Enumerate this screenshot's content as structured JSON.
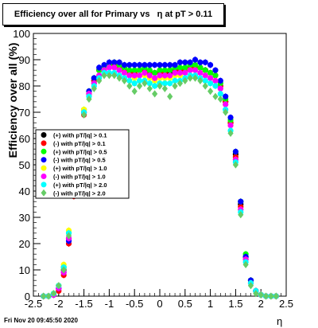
{
  "chart_data": {
    "type": "scatter",
    "title": "Efficiency over all for Primary vs   η at pT > 0.11",
    "xlabel": "η",
    "ylabel": "Efficiency over all (%)",
    "xlim": [
      -2.5,
      2.5
    ],
    "ylim": [
      0,
      100
    ],
    "x_ticks": [
      "-2.5",
      "-2",
      "-1.5",
      "-1",
      "-0.5",
      "0",
      "0.5",
      "1",
      "1.5",
      "2",
      "2.5"
    ],
    "y_ticks": [
      "0",
      "10",
      "20",
      "30",
      "40",
      "50",
      "60",
      "70",
      "80",
      "90",
      "100"
    ],
    "grid": false,
    "legend_position": "left",
    "series": [
      {
        "name": "(+) with pT/|q| > 0.1",
        "color": "#000000",
        "marker": "circle",
        "x": [
          -2.3,
          -2.2,
          -2.1,
          -2.0,
          -1.9,
          -1.8,
          -1.7,
          -1.6,
          -1.5,
          -1.4,
          -1.3,
          -1.2,
          -1.1,
          -1.0,
          -0.9,
          -0.8,
          -0.7,
          -0.6,
          -0.5,
          -0.4,
          -0.3,
          -0.2,
          -0.1,
          0.0,
          0.1,
          0.2,
          0.3,
          0.4,
          0.5,
          0.6,
          0.7,
          0.8,
          0.9,
          1.0,
          1.1,
          1.2,
          1.3,
          1.4,
          1.5,
          1.6,
          1.7,
          1.8,
          1.9,
          2.0,
          2.1,
          2.2,
          2.3
        ],
        "y": [
          0,
          0,
          0.5,
          3,
          10,
          22,
          40,
          58,
          70,
          77,
          82,
          86,
          87,
          88,
          88,
          87,
          86,
          85,
          85,
          86,
          86,
          85,
          85,
          85,
          85,
          85,
          86,
          86,
          86,
          87,
          87,
          87,
          86,
          85,
          84,
          80,
          74,
          66,
          54,
          35,
          15,
          6,
          2,
          0.5,
          0,
          0,
          0
        ]
      },
      {
        "name": "(-) with pT/|q| > 0.1",
        "color": "#ff0000",
        "marker": "circle",
        "x": [
          -2.3,
          -2.2,
          -2.1,
          -2.0,
          -1.9,
          -1.8,
          -1.7,
          -1.6,
          -1.5,
          -1.4,
          -1.3,
          -1.2,
          -1.1,
          -1.0,
          -0.9,
          -0.8,
          -0.7,
          -0.6,
          -0.5,
          -0.4,
          -0.3,
          -0.2,
          -0.1,
          0.0,
          0.1,
          0.2,
          0.3,
          0.4,
          0.5,
          0.6,
          0.7,
          0.8,
          0.9,
          1.0,
          1.1,
          1.2,
          1.3,
          1.4,
          1.5,
          1.6,
          1.7,
          1.8,
          1.9,
          2.0,
          2.1,
          2.2,
          2.3
        ],
        "y": [
          0,
          0,
          0.5,
          2,
          8,
          20,
          38,
          57,
          69,
          77,
          82,
          86,
          87,
          88,
          88,
          87,
          86,
          85,
          85,
          86,
          86,
          85,
          85,
          85,
          85,
          86,
          86,
          86,
          86,
          87,
          87,
          87,
          86,
          85,
          84,
          80,
          74,
          66,
          53,
          34,
          14,
          5,
          2,
          0.5,
          0,
          0,
          0
        ]
      },
      {
        "name": "(+) with pT/|q| > 0.5",
        "color": "#00ff00",
        "marker": "circle",
        "x": [
          -2.3,
          -2.2,
          -2.1,
          -2.0,
          -1.9,
          -1.8,
          -1.7,
          -1.6,
          -1.5,
          -1.4,
          -1.3,
          -1.2,
          -1.1,
          -1.0,
          -0.9,
          -0.8,
          -0.7,
          -0.6,
          -0.5,
          -0.4,
          -0.3,
          -0.2,
          -0.1,
          0.0,
          0.1,
          0.2,
          0.3,
          0.4,
          0.5,
          0.6,
          0.7,
          0.8,
          0.9,
          1.0,
          1.1,
          1.2,
          1.3,
          1.4,
          1.5,
          1.6,
          1.7,
          1.8,
          1.9,
          2.0,
          2.1,
          2.2,
          2.3
        ],
        "y": [
          0,
          0,
          1,
          4,
          11,
          24,
          41,
          59,
          71,
          78,
          83,
          86,
          87,
          88,
          89,
          88,
          87,
          86,
          86,
          86,
          87,
          86,
          85,
          86,
          86,
          86,
          87,
          87,
          87,
          88,
          88,
          87,
          86,
          85,
          84,
          81,
          75,
          67,
          55,
          36,
          16,
          6,
          2,
          0.5,
          0,
          0,
          0
        ]
      },
      {
        "name": "(-) with pT/|q| > 0.5",
        "color": "#0000ff",
        "marker": "circle",
        "x": [
          -2.3,
          -2.2,
          -2.1,
          -2.0,
          -1.9,
          -1.8,
          -1.7,
          -1.6,
          -1.5,
          -1.4,
          -1.3,
          -1.2,
          -1.1,
          -1.0,
          -0.9,
          -0.8,
          -0.7,
          -0.6,
          -0.5,
          -0.4,
          -0.3,
          -0.2,
          -0.1,
          0.0,
          0.1,
          0.2,
          0.3,
          0.4,
          0.5,
          0.6,
          0.7,
          0.8,
          0.9,
          1.0,
          1.1,
          1.2,
          1.3,
          1.4,
          1.5,
          1.6,
          1.7,
          1.8,
          1.9,
          2.0,
          2.1,
          2.2,
          2.3
        ],
        "y": [
          0,
          0,
          0.5,
          3,
          9,
          21,
          39,
          58,
          70,
          78,
          83,
          87,
          88,
          89,
          89,
          89,
          88,
          88,
          88,
          88,
          88,
          88,
          88,
          88,
          88,
          88,
          88,
          89,
          89,
          89,
          90,
          89,
          89,
          88,
          86,
          82,
          76,
          68,
          55,
          36,
          15,
          6,
          2,
          0.5,
          0,
          0,
          0
        ]
      },
      {
        "name": "(+) with pT/|q| > 1.0",
        "color": "#ffff00",
        "marker": "circle",
        "x": [
          -2.3,
          -2.2,
          -2.1,
          -2.0,
          -1.9,
          -1.8,
          -1.7,
          -1.6,
          -1.5,
          -1.4,
          -1.3,
          -1.2,
          -1.1,
          -1.0,
          -0.9,
          -0.8,
          -0.7,
          -0.6,
          -0.5,
          -0.4,
          -0.3,
          -0.2,
          -0.1,
          0.0,
          0.1,
          0.2,
          0.3,
          0.4,
          0.5,
          0.6,
          0.7,
          0.8,
          0.9,
          1.0,
          1.1,
          1.2,
          1.3,
          1.4,
          1.5,
          1.6,
          1.7,
          1.8,
          1.9,
          2.0,
          2.1,
          2.2,
          2.3
        ],
        "y": [
          0,
          0,
          1,
          4,
          12,
          25,
          42,
          60,
          71,
          77,
          81,
          84,
          86,
          87,
          87,
          86,
          85,
          84,
          83,
          84,
          84,
          83,
          82,
          83,
          83,
          83,
          84,
          84,
          85,
          86,
          86,
          85,
          84,
          83,
          82,
          79,
          73,
          65,
          52,
          33,
          14,
          5,
          2,
          0.5,
          0,
          0,
          0
        ]
      },
      {
        "name": "(-) with pT/|q| > 1.0",
        "color": "#ff00ff",
        "marker": "circle",
        "x": [
          -2.3,
          -2.2,
          -2.1,
          -2.0,
          -1.9,
          -1.8,
          -1.7,
          -1.6,
          -1.5,
          -1.4,
          -1.3,
          -1.2,
          -1.1,
          -1.0,
          -0.9,
          -0.8,
          -0.7,
          -0.6,
          -0.5,
          -0.4,
          -0.3,
          -0.2,
          -0.1,
          0.0,
          0.1,
          0.2,
          0.3,
          0.4,
          0.5,
          0.6,
          0.7,
          0.8,
          0.9,
          1.0,
          1.1,
          1.2,
          1.3,
          1.4,
          1.5,
          1.6,
          1.7,
          1.8,
          1.9,
          2.0,
          2.1,
          2.2,
          2.3
        ],
        "y": [
          0,
          0,
          0.5,
          3,
          9,
          22,
          40,
          58,
          70,
          77,
          81,
          84,
          86,
          87,
          87,
          86,
          85,
          84,
          84,
          84,
          85,
          84,
          83,
          84,
          84,
          84,
          85,
          85,
          85,
          86,
          86,
          85,
          84,
          83,
          82,
          79,
          73,
          65,
          52,
          33,
          14,
          5,
          2,
          0.5,
          0,
          0,
          0
        ]
      },
      {
        "name": "(+) with pT/|q| > 2.0",
        "color": "#00ffff",
        "marker": "circle",
        "x": [
          -2.3,
          -2.2,
          -2.1,
          -2.0,
          -1.9,
          -1.8,
          -1.7,
          -1.6,
          -1.5,
          -1.4,
          -1.3,
          -1.2,
          -1.1,
          -1.0,
          -0.9,
          -0.8,
          -0.7,
          -0.6,
          -0.5,
          -0.4,
          -0.3,
          -0.2,
          -0.1,
          0.0,
          0.1,
          0.2,
          0.3,
          0.4,
          0.5,
          0.6,
          0.7,
          0.8,
          0.9,
          1.0,
          1.1,
          1.2,
          1.3,
          1.4,
          1.5,
          1.6,
          1.7,
          1.8,
          1.9,
          2.0,
          2.1,
          2.2,
          2.3
        ],
        "y": [
          0,
          0,
          1,
          4,
          11,
          24,
          41,
          59,
          70,
          76,
          80,
          83,
          85,
          85,
          85,
          84,
          83,
          82,
          81,
          82,
          82,
          81,
          80,
          81,
          81,
          81,
          82,
          82,
          83,
          84,
          84,
          83,
          82,
          81,
          80,
          77,
          71,
          63,
          51,
          32,
          13,
          5,
          2,
          0.5,
          0,
          0,
          0
        ]
      },
      {
        "name": "(-) with pT/|q| > 2.0",
        "color": "#66cc66",
        "marker": "diamond",
        "x": [
          -2.3,
          -2.2,
          -2.1,
          -2.0,
          -1.9,
          -1.8,
          -1.7,
          -1.6,
          -1.5,
          -1.4,
          -1.3,
          -1.2,
          -1.1,
          -1.0,
          -0.9,
          -0.8,
          -0.7,
          -0.6,
          -0.5,
          -0.4,
          -0.3,
          -0.2,
          -0.1,
          0.0,
          0.1,
          0.2,
          0.3,
          0.4,
          0.5,
          0.6,
          0.7,
          0.8,
          0.9,
          1.0,
          1.1,
          1.2,
          1.3,
          1.4,
          1.5,
          1.6,
          1.7,
          1.8,
          1.9,
          2.0,
          2.1,
          2.2,
          2.3
        ],
        "y": [
          0,
          0,
          1,
          4,
          10,
          23,
          40,
          58,
          69,
          75,
          79,
          82,
          84,
          84,
          84,
          83,
          82,
          80,
          78,
          80,
          81,
          79,
          77,
          80,
          79,
          76,
          80,
          81,
          82,
          83,
          83,
          82,
          80,
          78,
          76,
          75,
          70,
          62,
          50,
          31,
          12,
          4,
          1,
          0.5,
          0,
          0,
          0
        ]
      }
    ]
  },
  "footer": {
    "timestamp": "Fri Nov 20 09:45:50 2020"
  }
}
